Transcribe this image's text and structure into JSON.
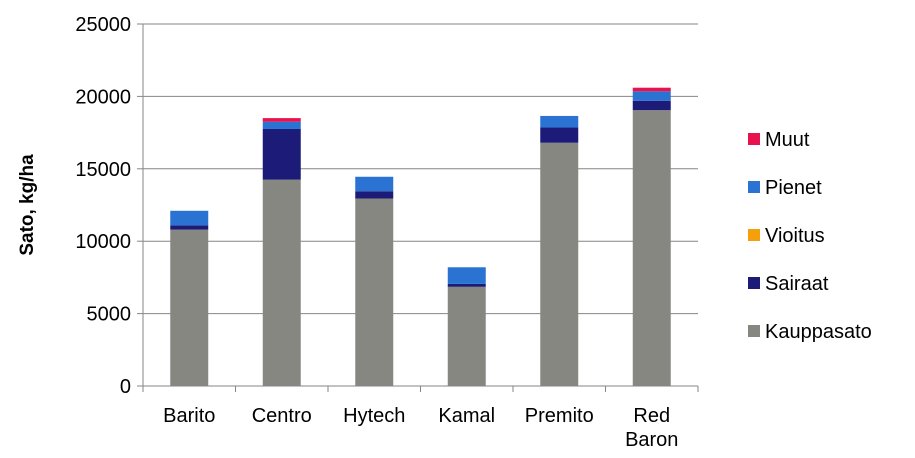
{
  "chart_data": {
    "type": "bar",
    "stacked": true,
    "categories": [
      "Barito",
      "Centro",
      "Hytech",
      "Kamal",
      "Premito",
      "Red Baron"
    ],
    "series": [
      {
        "name": "Kauppasato",
        "color": "#878782",
        "values": [
          10800,
          14250,
          12950,
          6850,
          16800,
          19050
        ]
      },
      {
        "name": "Sairaat",
        "color": "#1c1c78",
        "values": [
          300,
          3500,
          500,
          200,
          1050,
          650
        ]
      },
      {
        "name": "Vioitus",
        "color": "#f5a00a",
        "values": [
          0,
          0,
          0,
          0,
          0,
          0
        ]
      },
      {
        "name": "Pienet",
        "color": "#2b73d2",
        "values": [
          1000,
          500,
          1000,
          1150,
          800,
          650
        ]
      },
      {
        "name": "Muut",
        "color": "#e8124e",
        "values": [
          0,
          250,
          0,
          0,
          0,
          250
        ]
      }
    ],
    "xlabel": "",
    "ylabel": "Sato, kg/ha",
    "ylim": [
      0,
      25000
    ],
    "yticks": [
      0,
      5000,
      10000,
      15000,
      20000,
      25000
    ],
    "grid": true,
    "legend_position": "right"
  }
}
